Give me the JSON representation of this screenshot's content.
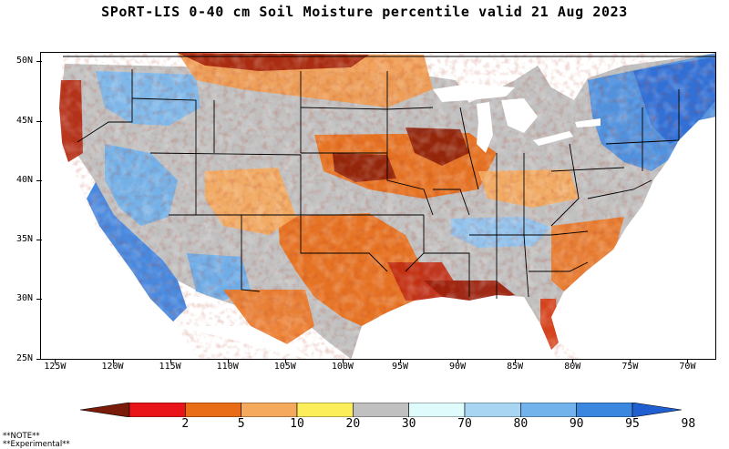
{
  "title": "SPoRT-LIS 0-40 cm Soil Moisture percentile valid 21 Aug 2023",
  "map": {
    "lat_labels": [
      "50N",
      "45N",
      "40N",
      "35N",
      "30N",
      "25N"
    ],
    "lat_values": [
      50,
      45,
      40,
      35,
      30,
      25
    ],
    "lon_labels": [
      "125W",
      "120W",
      "115W",
      "110W",
      "105W",
      "100W",
      "95W",
      "90W",
      "85W",
      "80W",
      "75W",
      "70W"
    ],
    "lon_values": [
      -125,
      -120,
      -115,
      -110,
      -105,
      -100,
      -95,
      -90,
      -85,
      -80,
      -75,
      -70
    ],
    "lon_range": [
      -126.3,
      -67.5
    ],
    "lat_range": [
      24.9,
      50.8
    ],
    "region": "CONUS"
  },
  "legend": {
    "labels": [
      "2",
      "5",
      "10",
      "20",
      "30",
      "70",
      "80",
      "90",
      "95",
      "98"
    ],
    "colors": [
      "#7a1a08",
      "#e8141a",
      "#e96d16",
      "#f5a95c",
      "#fbee5a",
      "#c0c0c0",
      "#e0fbfb",
      "#a8d6f2",
      "#72b3ec",
      "#3b86df",
      "#1f5fd0"
    ]
  },
  "notes": [
    "**NOTE**",
    "**Experimental**"
  ]
}
